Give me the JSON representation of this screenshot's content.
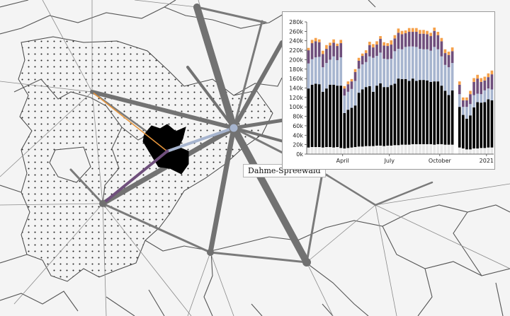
{
  "map": {
    "region_label": "Dahme-Spreewald",
    "colors": {
      "background": "#f4f4f4",
      "district_border": "#555555",
      "flow_line": "#777777",
      "hub_node": "#707070",
      "selected_region": "#000000",
      "link_orange": "#e8963c",
      "link_purple": "#6f4f7c",
      "link_lightblue": "#a7b5cf"
    }
  },
  "chart_data": {
    "type": "bar",
    "stacked": true,
    "ylim": [
      0,
      280000
    ],
    "y_ticks": [
      "0k",
      "20k",
      "40k",
      "60k",
      "80k",
      "100k",
      "120k",
      "140k",
      "160k",
      "180k",
      "200k",
      "220k",
      "240k",
      "260k",
      "280k"
    ],
    "x_tick_labels": [
      "April",
      "July",
      "October",
      "2021"
    ],
    "x_tick_positions": [
      10,
      23,
      37,
      50
    ],
    "series_colors": [
      "#e8e8e8",
      "#000000",
      "#a7b5cf",
      "#6f4f7c",
      "#f5a04a"
    ],
    "series": [
      {
        "values": [
          14000,
          15000,
          15000,
          15000,
          14000,
          15000,
          15000,
          14000,
          15000,
          13000,
          12000,
          13000,
          14000,
          15000,
          16000,
          16000,
          17000,
          17000,
          17000,
          18000,
          18000,
          17000,
          18000,
          18000,
          19000,
          19000,
          20000,
          20000,
          20000,
          21000,
          21000,
          21000,
          21000,
          21000,
          21000,
          20000,
          21000,
          21000,
          20000,
          20000,
          20000,
          null,
          14000,
          12000,
          10000,
          10000,
          12000,
          12000,
          13000,
          13000,
          14000,
          14000
        ]
      },
      {
        "values": [
          125000,
          132000,
          134000,
          133000,
          118000,
          124000,
          132000,
          133000,
          130000,
          132000,
          75000,
          81000,
          84000,
          88000,
          114000,
          121000,
          125000,
          127000,
          115000,
          127000,
          132000,
          125000,
          124000,
          128000,
          130000,
          141000,
          139000,
          139000,
          135000,
          139000,
          134000,
          136000,
          136000,
          135000,
          132000,
          134000,
          133000,
          124000,
          114000,
          105000,
          115000,
          null,
          86000,
          71000,
          65000,
          72000,
          87000,
          98000,
          96000,
          97000,
          102000,
          100000
        ]
      },
      {
        "values": [
          53000,
          54000,
          56000,
          58000,
          52000,
          54000,
          53000,
          60000,
          54000,
          60000,
          37000,
          38000,
          40000,
          52000,
          51000,
          53000,
          53000,
          63000,
          72000,
          63000,
          65000,
          60000,
          59000,
          56000,
          69000,
          63000,
          63000,
          68000,
          73000,
          68000,
          72000,
          66000,
          65000,
          66000,
          66000,
          73000,
          68000,
          62000,
          55000,
          59000,
          58000,
          null,
          27000,
          17000,
          25000,
          24000,
          26000,
          18000,
          18000,
          25000,
          23000,
          23000
        ]
      },
      {
        "values": [
          28000,
          34000,
          34000,
          31000,
          28000,
          30000,
          30000,
          29000,
          30000,
          30000,
          15000,
          16000,
          16000,
          19000,
          17000,
          18000,
          19000,
          24000,
          22000,
          24000,
          29000,
          28000,
          28000,
          30000,
          27000,
          34000,
          32000,
          29000,
          31000,
          31000,
          32000,
          32000,
          33000,
          32000,
          31000,
          34000,
          30000,
          32000,
          25000,
          26000,
          25000,
          null,
          20000,
          14000,
          14000,
          21000,
          28000,
          32000,
          26000,
          21000,
          24000,
          32000
        ]
      },
      {
        "values": [
          5000,
          7000,
          7000,
          6000,
          7000,
          8000,
          6000,
          7000,
          5000,
          7000,
          5000,
          6000,
          5000,
          6000,
          6000,
          5000,
          6000,
          7000,
          7000,
          7000,
          6000,
          7000,
          6000,
          9000,
          7000,
          9000,
          7000,
          6000,
          8000,
          8000,
          8000,
          8000,
          8000,
          7000,
          7000,
          7000,
          7000,
          7000,
          8000,
          7000,
          8000,
          null,
          7000,
          6000,
          6000,
          7000,
          8000,
          8000,
          8000,
          8000,
          8000,
          8000
        ]
      }
    ]
  }
}
